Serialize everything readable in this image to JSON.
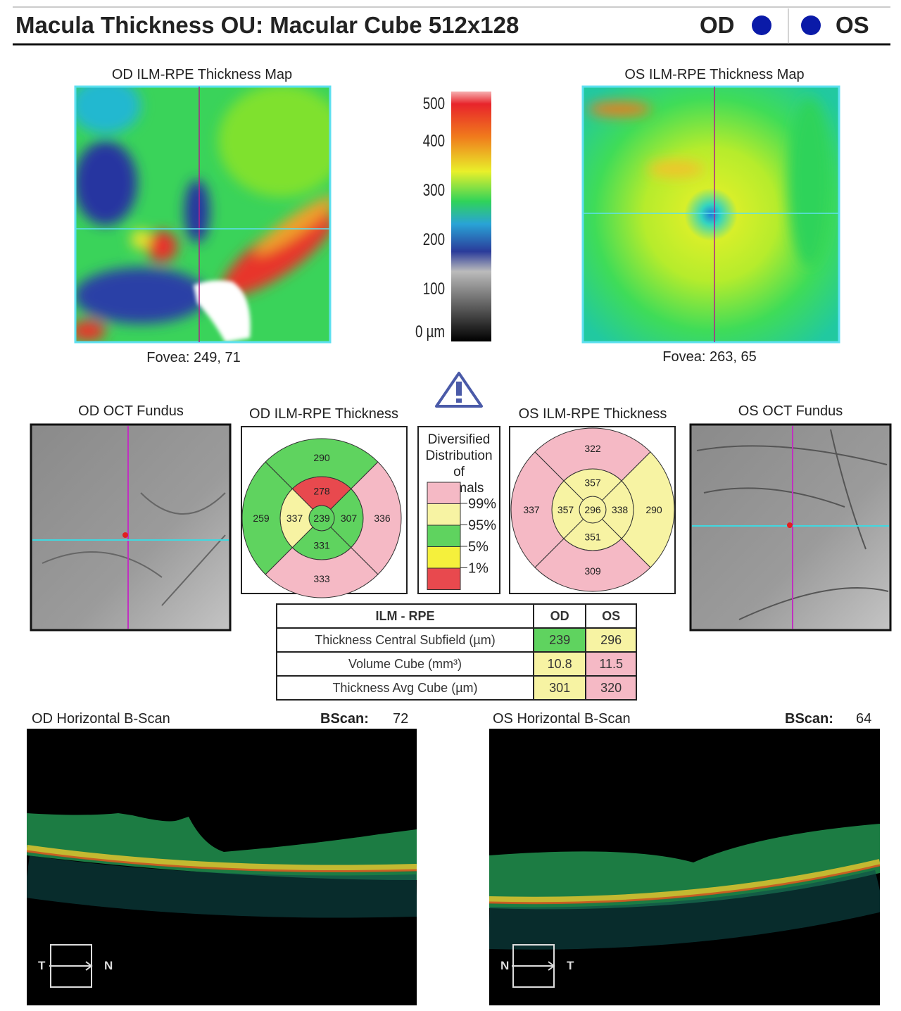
{
  "header": {
    "title": "Macula Thickness OU: Macular Cube 512x128",
    "od": "OD",
    "os": "OS"
  },
  "thickness_maps": {
    "od": {
      "title": "OD ILM-RPE Thickness Map",
      "fovea": "Fovea: 249, 71"
    },
    "os": {
      "title": "OS ILM-RPE Thickness Map",
      "fovea": "Fovea: 263, 65"
    }
  },
  "color_scale": {
    "labels": [
      "500",
      "400",
      "300",
      "200",
      "100",
      "0 µm"
    ]
  },
  "fundus": {
    "od": {
      "title": "OD OCT Fundus"
    },
    "os": {
      "title": "OS OCT Fundus"
    }
  },
  "grids": {
    "od": {
      "title": "OD ILM-RPE Thickness",
      "values": [
        239,
        278,
        307,
        331,
        337,
        290,
        336,
        333,
        259
      ],
      "colors": [
        "#5fd35f",
        "#e8494e",
        "#5fd35f",
        "#5fd35f",
        "#f7f3a3",
        "#5fd35f",
        "#f5b9c5",
        "#f5b9c5",
        "#5fd35f"
      ]
    },
    "os": {
      "title": "OS ILM-RPE Thickness",
      "values": [
        296,
        357,
        338,
        351,
        357,
        322,
        290,
        309,
        337
      ],
      "colors": [
        "#f7f3a3",
        "#f7f3a3",
        "#f7f3a3",
        "#f7f3a3",
        "#f7f3a3",
        "#f5b9c5",
        "#f7f3a3",
        "#f5b9c5",
        "#f5b9c5"
      ]
    }
  },
  "legend": {
    "title": "Diversified Distribution of Normals",
    "labels": [
      "99%",
      "95%",
      "5%",
      "1%"
    ],
    "colors": [
      "#f5b9c5",
      "#f7f3a3",
      "#5fd35f",
      "#f5f03c",
      "#e8494e"
    ]
  },
  "table": {
    "header": [
      "ILM - RPE",
      "OD",
      "OS"
    ],
    "rows": [
      [
        "Thickness Central Subfield (µm)",
        239,
        296
      ],
      [
        "Volume Cube (mm³)",
        10.8,
        11.5
      ],
      [
        "Thickness Avg Cube (µm)",
        301,
        320
      ]
    ],
    "cell_colors": [
      [
        "#5fd35f",
        "#f7f3a3"
      ],
      [
        "#f7f3a3",
        "#f5b9c5"
      ],
      [
        "#f7f3a3",
        "#f5b9c5"
      ]
    ]
  },
  "bscans": {
    "od": {
      "title": "OD Horizontal B-Scan",
      "bscan_label": "BScan:",
      "bscan": 72,
      "left": "T",
      "right": "N"
    },
    "os": {
      "title": "OS Horizontal B-Scan",
      "bscan_label": "BScan:",
      "bscan": 64,
      "left": "N",
      "right": "T"
    }
  }
}
